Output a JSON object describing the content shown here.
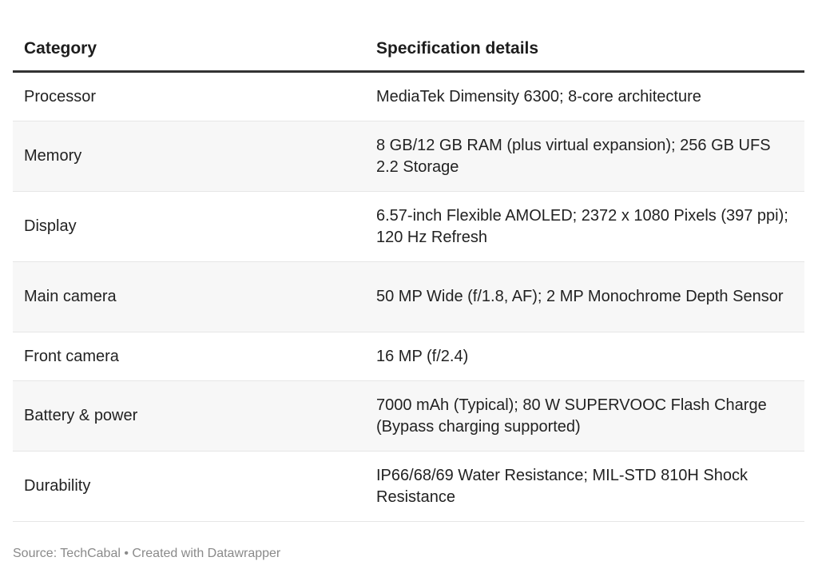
{
  "table": {
    "headers": [
      "Category",
      "Specification details"
    ],
    "rows": [
      {
        "category": "Processor",
        "details": "MediaTek Dimensity 6300; 8-core architecture"
      },
      {
        "category": "Memory",
        "details": "8 GB/12 GB RAM (plus virtual expansion); 256 GB UFS 2.2 Storage"
      },
      {
        "category": "Display",
        "details": "6.57-inch Flexible AMOLED; 2372 x 1080 Pixels (397 ppi); 120 Hz Refresh"
      },
      {
        "category": "Main camera",
        "details": "50 MP Wide (f/1.8, AF); 2 MP Monochrome Depth Sensor"
      },
      {
        "category": "Front camera",
        "details": "16 MP (f/2.4)"
      },
      {
        "category": "Battery & power",
        "details": "7000 mAh (Typical); 80 W SUPERVOOC Flash Charge (Bypass charging supported)"
      },
      {
        "category": "Durability",
        "details": "IP66/68/69 Water Resistance; MIL-STD 810H Shock Resistance"
      }
    ]
  },
  "footer": {
    "text": "Source: TechCabal • Created with Datawrapper"
  }
}
